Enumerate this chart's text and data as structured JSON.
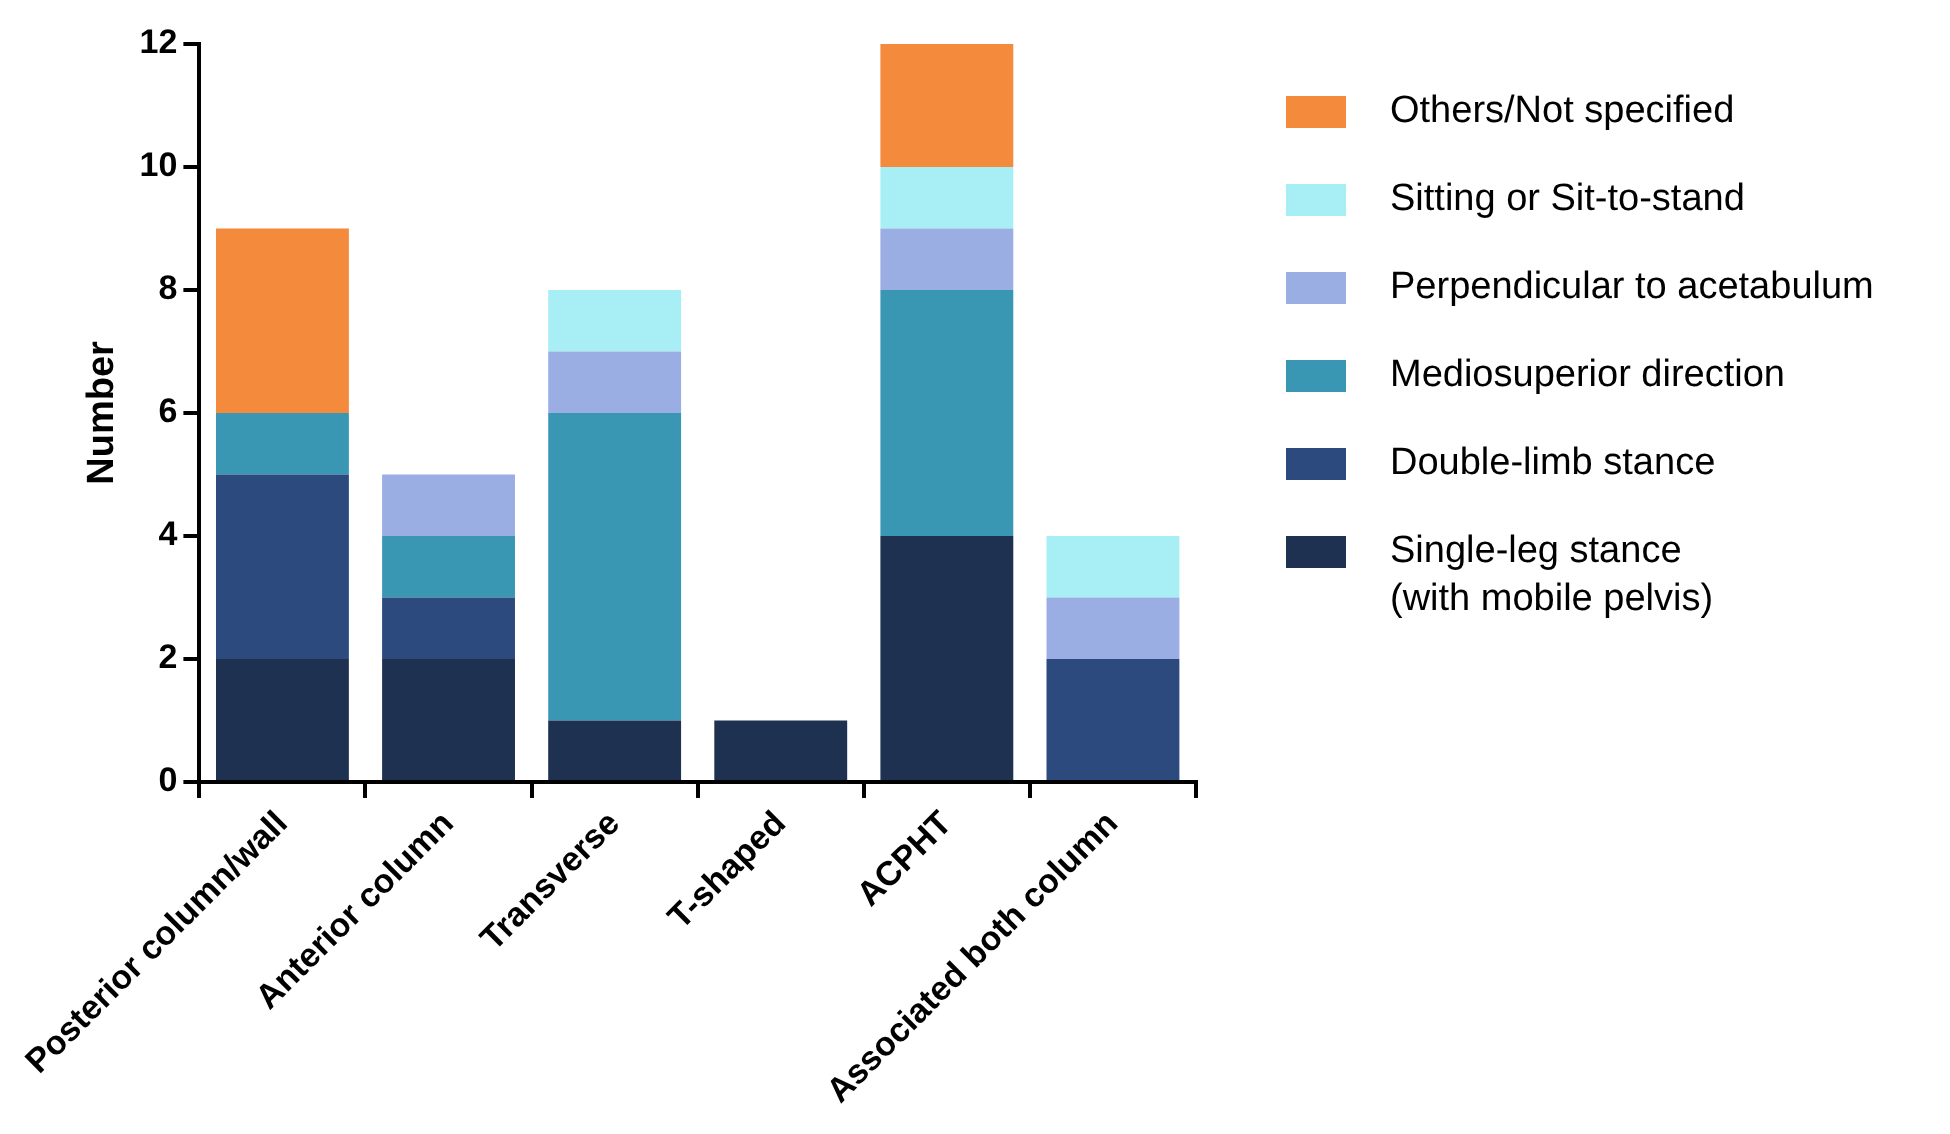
{
  "chart_data": {
    "type": "bar",
    "stacked": true,
    "ylabel": "Number",
    "categories": [
      "Posterior column/wall",
      "Anterior column",
      "Transverse",
      "T-shaped",
      "ACPHT",
      "Associated both column"
    ],
    "series": [
      {
        "name": "Single-leg stance\n(with mobile pelvis)",
        "color": "#1f3150",
        "values": [
          2,
          2,
          1,
          1,
          4,
          0
        ]
      },
      {
        "name": "Double-limb stance",
        "color": "#2c4a7e",
        "values": [
          3,
          1,
          0,
          0,
          0,
          2
        ]
      },
      {
        "name": "Mediosuperior direction",
        "color": "#3a97b4",
        "values": [
          1,
          1,
          5,
          0,
          4,
          0
        ]
      },
      {
        "name": "Perpendicular to acetabulum",
        "color": "#9aaee3",
        "values": [
          0,
          1,
          1,
          0,
          1,
          1
        ]
      },
      {
        "name": "Sitting or Sit-to-stand",
        "color": "#a8eef5",
        "values": [
          0,
          0,
          1,
          0,
          1,
          1
        ]
      },
      {
        "name": "Others/Not specified",
        "color": "#f48a3c",
        "values": [
          3,
          0,
          0,
          0,
          2,
          0
        ]
      }
    ],
    "ylim": [
      0,
      12
    ],
    "yticks": [
      0,
      2,
      4,
      6,
      8,
      10,
      12
    ],
    "grid": false,
    "legend": "right"
  }
}
